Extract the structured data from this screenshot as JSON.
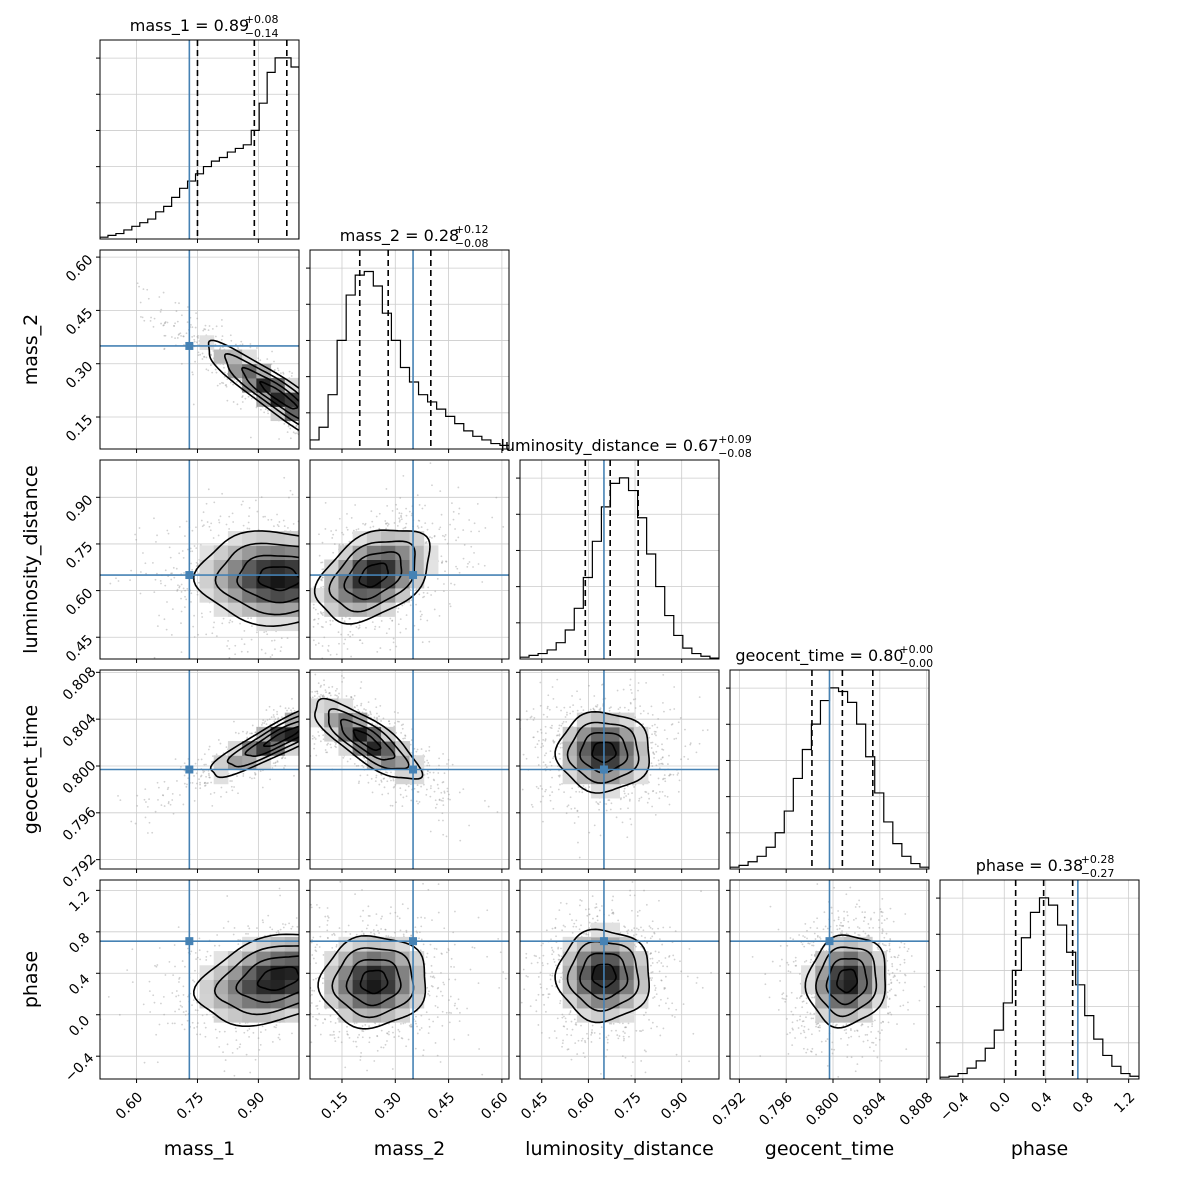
{
  "chart_data": {
    "type": "corner",
    "title": "",
    "truth_color": "#4682b4",
    "grid": true,
    "parameters": [
      {
        "name": "mass_1",
        "label": "mass_1",
        "range": [
          0.51,
          1.0
        ],
        "ticks": [
          0.6,
          0.75,
          0.9
        ],
        "tick_labels": [
          "0.60",
          "0.75",
          "0.90"
        ],
        "truth": 0.73,
        "median": 0.89,
        "plus": "+0.08",
        "minus": "−0.14",
        "quantiles": [
          0.75,
          0.89,
          0.97
        ],
        "title_main": "mass_1 = 0.89"
      },
      {
        "name": "mass_2",
        "label": "mass_2",
        "range": [
          0.06,
          0.62
        ],
        "ticks": [
          0.15,
          0.3,
          0.45,
          0.6
        ],
        "tick_labels": [
          "0.15",
          "0.30",
          "0.45",
          "0.60"
        ],
        "truth": 0.35,
        "median": 0.28,
        "plus": "+0.12",
        "minus": "−0.08",
        "quantiles": [
          0.2,
          0.28,
          0.4
        ],
        "title_main": "mass_2 = 0.28"
      },
      {
        "name": "luminosity_distance",
        "label": "luminosity_distance",
        "range": [
          0.38,
          1.02
        ],
        "ticks": [
          0.45,
          0.6,
          0.75,
          0.9
        ],
        "tick_labels": [
          "0.45",
          "0.60",
          "0.75",
          "0.90"
        ],
        "truth": 0.65,
        "median": 0.67,
        "plus": "+0.09",
        "minus": "−0.08",
        "quantiles": [
          0.59,
          0.67,
          0.76
        ],
        "title_main": "luminosity_distance = 0.67"
      },
      {
        "name": "geocent_time",
        "label": "geocent_time",
        "range": [
          0.7912,
          0.8082
        ],
        "ticks": [
          0.792,
          0.796,
          0.8,
          0.804,
          0.808
        ],
        "tick_labels": [
          "0.792",
          "0.796",
          "0.800",
          "0.804",
          "0.808"
        ],
        "truth": 0.7997,
        "median": 0.8,
        "plus": "+0.00",
        "minus": "−0.00",
        "quantiles": [
          0.7982,
          0.8008,
          0.8034
        ],
        "title_main": "geocent_time = 0.80"
      },
      {
        "name": "phase",
        "label": "phase",
        "range": [
          -0.62,
          1.3
        ],
        "ticks": [
          -0.4,
          0.0,
          0.4,
          0.8,
          1.2
        ],
        "tick_labels": [
          "−0.4",
          "0.0",
          "0.4",
          "0.8",
          "1.2"
        ],
        "truth": 0.71,
        "median": 0.38,
        "plus": "+0.28",
        "minus": "−0.27",
        "quantiles": [
          0.11,
          0.38,
          0.66
        ],
        "title_main": "phase = 0.38"
      }
    ],
    "marginals": [
      {
        "param": "mass_1",
        "values": [
          0.01,
          0.02,
          0.03,
          0.05,
          0.07,
          0.09,
          0.11,
          0.15,
          0.18,
          0.23,
          0.28,
          0.32,
          0.36,
          0.4,
          0.43,
          0.45,
          0.48,
          0.5,
          0.52,
          0.6,
          0.75,
          0.92,
          1.0,
          1.0,
          0.95
        ]
      },
      {
        "param": "mass_2",
        "values": [
          0.05,
          0.12,
          0.3,
          0.6,
          0.85,
          0.96,
          0.98,
          0.9,
          0.75,
          0.6,
          0.45,
          0.37,
          0.3,
          0.26,
          0.22,
          0.18,
          0.14,
          0.1,
          0.07,
          0.05,
          0.03,
          0.02
        ]
      },
      {
        "param": "luminosity_distance",
        "values": [
          0.01,
          0.02,
          0.03,
          0.05,
          0.09,
          0.16,
          0.28,
          0.45,
          0.65,
          0.84,
          0.97,
          1.0,
          0.93,
          0.78,
          0.58,
          0.4,
          0.24,
          0.13,
          0.06,
          0.03,
          0.015,
          0.005
        ]
      },
      {
        "param": "geocent_time",
        "values": [
          0.01,
          0.02,
          0.04,
          0.07,
          0.12,
          0.2,
          0.32,
          0.5,
          0.66,
          0.8,
          0.93,
          1.0,
          0.98,
          0.92,
          0.8,
          0.62,
          0.42,
          0.26,
          0.14,
          0.07,
          0.03,
          0.01
        ]
      },
      {
        "param": "phase",
        "values": [
          0.01,
          0.015,
          0.03,
          0.06,
          0.1,
          0.17,
          0.27,
          0.42,
          0.6,
          0.78,
          0.92,
          1.0,
          0.96,
          0.85,
          0.7,
          0.52,
          0.35,
          0.22,
          0.13,
          0.07,
          0.03,
          0.015
        ]
      }
    ],
    "joints": [
      {
        "x": "mass_1",
        "y": "mass_2",
        "mode": [
          0.95,
          0.21
        ],
        "sx": 0.09,
        "sy": 0.075,
        "rho": -0.92
      },
      {
        "x": "mass_1",
        "y": "luminosity_distance",
        "mode": [
          0.95,
          0.64
        ],
        "sx": 0.1,
        "sy": 0.075,
        "rho": -0.05
      },
      {
        "x": "mass_2",
        "y": "luminosity_distance",
        "mode": [
          0.24,
          0.65
        ],
        "sx": 0.08,
        "sy": 0.075,
        "rho": 0.4
      },
      {
        "x": "luminosity_distance",
        "y": "geocent_time",
        "mode": [
          0.65,
          0.8012
        ],
        "sx": 0.075,
        "sy": 0.0017,
        "rho": 0.0
      },
      {
        "x": "mass_1",
        "y": "geocent_time",
        "mode": [
          0.96,
          0.8025
        ],
        "sx": 0.09,
        "sy": 0.0017,
        "rho": 0.9
      },
      {
        "x": "mass_2",
        "y": "geocent_time",
        "mode": [
          0.22,
          0.8022
        ],
        "sx": 0.075,
        "sy": 0.0017,
        "rho": -0.8
      },
      {
        "x": "mass_1",
        "y": "phase",
        "mode": [
          0.95,
          0.35
        ],
        "sx": 0.1,
        "sy": 0.22,
        "rho": 0.35
      },
      {
        "x": "mass_2",
        "y": "phase",
        "mode": [
          0.24,
          0.32
        ],
        "sx": 0.075,
        "sy": 0.22,
        "rho": 0.05
      },
      {
        "x": "luminosity_distance",
        "y": "phase",
        "mode": [
          0.65,
          0.38
        ],
        "sx": 0.075,
        "sy": 0.22,
        "rho": 0.0
      },
      {
        "x": "geocent_time",
        "y": "phase",
        "mode": [
          0.8012,
          0.33
        ],
        "sx": 0.0017,
        "sy": 0.22,
        "rho": 0.1
      }
    ]
  }
}
